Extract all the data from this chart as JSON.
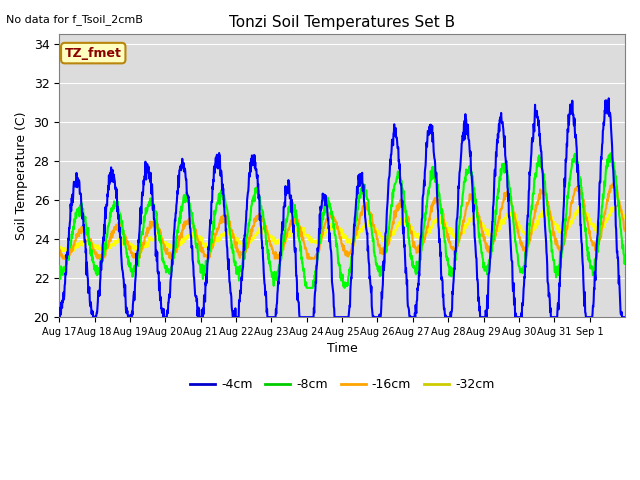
{
  "title": "Tonzi Soil Temperatures Set B",
  "subtitle": "No data for f_Tsoil_2cmB",
  "ylabel": "Soil Temperature (C)",
  "xlabel": "Time",
  "ylim": [
    20,
    34.5
  ],
  "yticks": [
    20,
    22,
    24,
    26,
    28,
    30,
    32,
    34
  ],
  "xtick_labels": [
    "Aug 17",
    "Aug 18",
    "Aug 19",
    "Aug 20",
    "Aug 21",
    "Aug 22",
    "Aug 23",
    "Aug 24",
    "Aug 25",
    "Aug 26",
    "Aug 27",
    "Aug 28",
    "Aug 29",
    "Aug 30",
    "Aug 31",
    "Sep 1"
  ],
  "annotation_text": "TZ_fmet",
  "annotation_color": "#8B0000",
  "annotation_bg": "#FFFFC0",
  "annotation_border": "#B8860B",
  "bg_color": "#DCDCDC",
  "color_4cm": "#0000FF",
  "color_8cm": "#00FF00",
  "color_16cm": "#FFA500",
  "color_32cm": "#FFFF00",
  "legend_colors": [
    "#0000CC",
    "#00CC00",
    "#FFA500",
    "#CCCC00"
  ],
  "legend_labels": [
    "-4cm",
    "-8cm",
    "-16cm",
    "-32cm"
  ],
  "linewidth": 1.5
}
